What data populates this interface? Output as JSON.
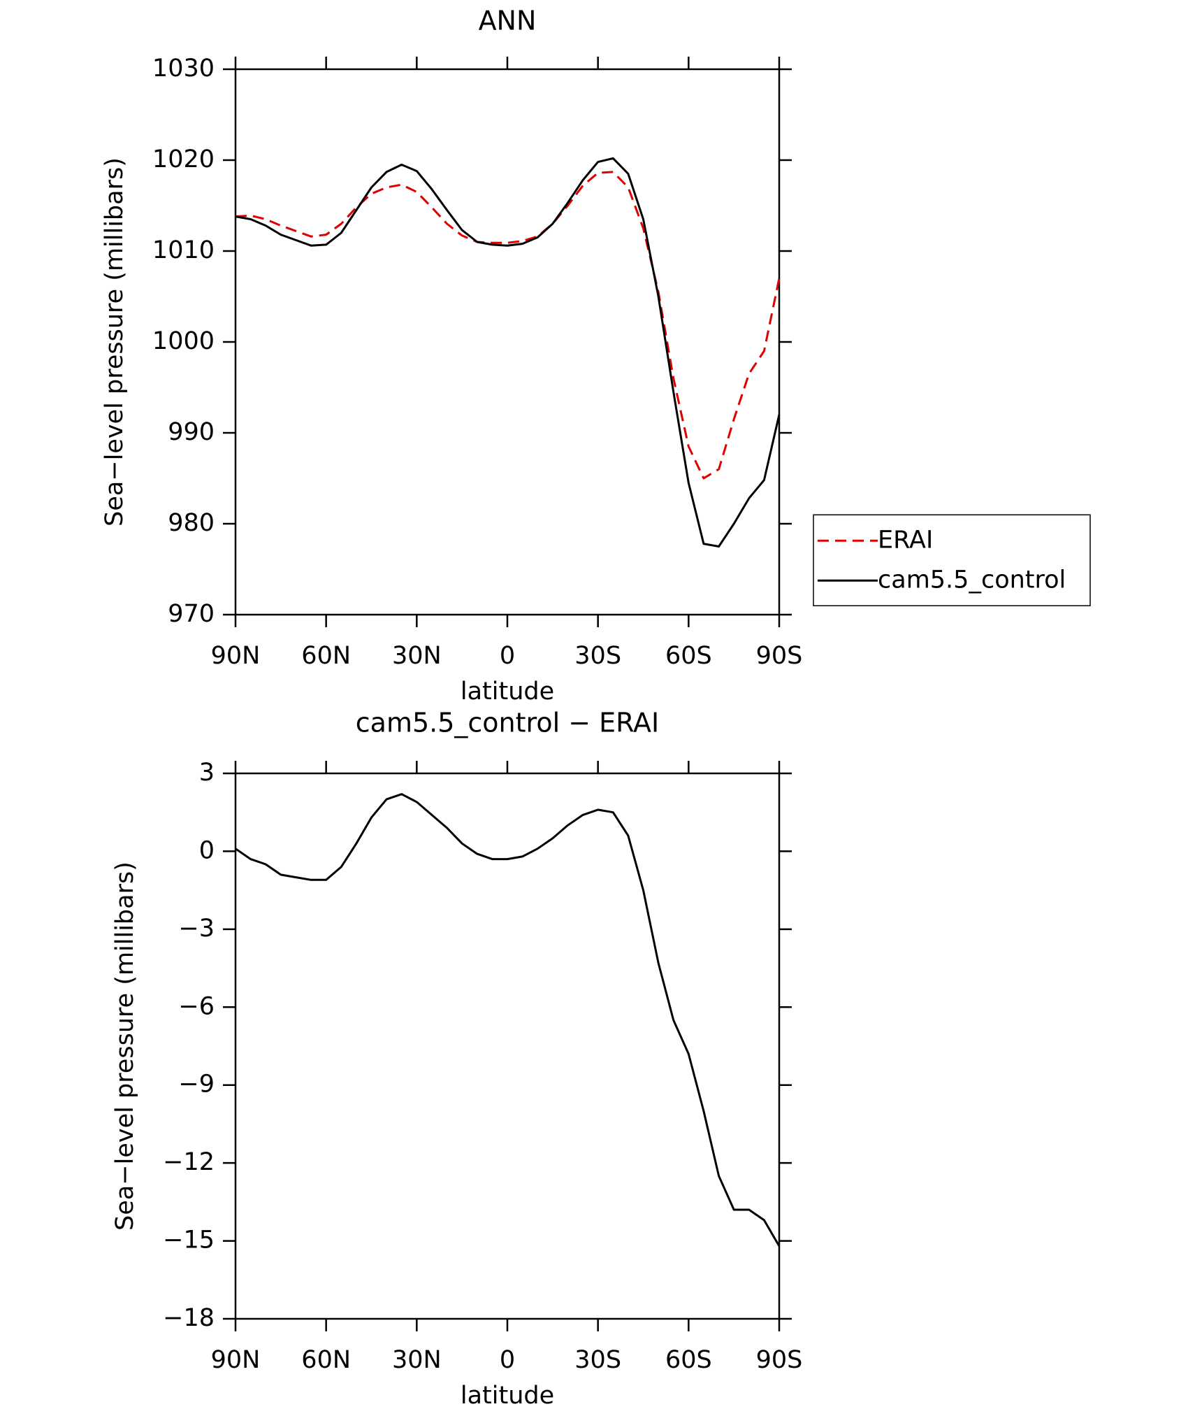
{
  "chart_data": [
    {
      "type": "line",
      "title": "ANN",
      "xlabel": "latitude",
      "ylabel": "Sea−level pressure (millibars)",
      "x": [
        90,
        85,
        80,
        75,
        70,
        65,
        60,
        55,
        50,
        45,
        40,
        35,
        30,
        25,
        20,
        15,
        10,
        5,
        0,
        -5,
        -10,
        -15,
        -20,
        -25,
        -30,
        -35,
        -40,
        -45,
        -50,
        -55,
        -60,
        -65,
        -70,
        -75,
        -80,
        -85,
        -90
      ],
      "xlim": [
        90,
        -90
      ],
      "xticks": [
        {
          "value": 90,
          "label": "90N"
        },
        {
          "value": 60,
          "label": "60N"
        },
        {
          "value": 30,
          "label": "30N"
        },
        0,
        {
          "value": -30,
          "label": "30S"
        },
        {
          "value": -60,
          "label": "60S"
        },
        {
          "value": -90,
          "label": "90S"
        }
      ],
      "ylim": [
        970,
        1030
      ],
      "yticks": [
        970,
        980,
        990,
        1000,
        1010,
        1020,
        1030
      ],
      "legend": "right",
      "series": [
        {
          "name": "ERAI",
          "color": "#e00000",
          "line_style": "dashed",
          "values": [
            1013.8,
            1013.9,
            1013.5,
            1012.8,
            1012.2,
            1011.6,
            1011.8,
            1013.0,
            1014.8,
            1016.3,
            1017.0,
            1017.3,
            1016.5,
            1014.8,
            1013.0,
            1011.7,
            1011.0,
            1010.9,
            1010.9,
            1011.1,
            1011.6,
            1013.0,
            1015.0,
            1017.2,
            1018.6,
            1018.7,
            1017.0,
            1012.5,
            1005.5,
            996.0,
            988.5,
            985.0,
            986.0,
            991.5,
            996.5,
            999.0,
            1007.0
          ]
        },
        {
          "name": "cam5.5_control",
          "color": "#000000",
          "line_style": "solid",
          "values": [
            1013.8,
            1013.5,
            1012.8,
            1011.8,
            1011.2,
            1010.6,
            1010.7,
            1012.0,
            1014.5,
            1017.0,
            1018.7,
            1019.5,
            1018.8,
            1016.8,
            1014.5,
            1012.3,
            1011.0,
            1010.7,
            1010.6,
            1010.8,
            1011.5,
            1013.0,
            1015.3,
            1017.8,
            1019.8,
            1020.2,
            1018.5,
            1013.5,
            1005.0,
            994.5,
            984.5,
            977.8,
            977.5,
            980.0,
            982.8,
            984.8,
            992.0
          ]
        }
      ]
    },
    {
      "type": "line",
      "title": "cam5.5_control − ERAI",
      "xlabel": "latitude",
      "ylabel": "Sea−level pressure (millibars)",
      "x": [
        90,
        85,
        80,
        75,
        70,
        65,
        60,
        55,
        50,
        45,
        40,
        35,
        30,
        25,
        20,
        15,
        10,
        5,
        0,
        -5,
        -10,
        -15,
        -20,
        -25,
        -30,
        -35,
        -40,
        -45,
        -50,
        -55,
        -60,
        -65,
        -70,
        -75,
        -80,
        -85,
        -90
      ],
      "xlim": [
        90,
        -90
      ],
      "xticks": [
        {
          "value": 90,
          "label": "90N"
        },
        {
          "value": 60,
          "label": "60N"
        },
        {
          "value": 30,
          "label": "30N"
        },
        0,
        {
          "value": -30,
          "label": "30S"
        },
        {
          "value": -60,
          "label": "60S"
        },
        {
          "value": -90,
          "label": "90S"
        }
      ],
      "ylim": [
        -18,
        3
      ],
      "yticks": [
        {
          "value": -18,
          "label": "−18"
        },
        {
          "value": -15,
          "label": "−15"
        },
        {
          "value": -12,
          "label": "−12"
        },
        {
          "value": -9,
          "label": "−9"
        },
        {
          "value": -6,
          "label": "−6"
        },
        {
          "value": -3,
          "label": "−3"
        },
        0,
        3
      ],
      "series": [
        {
          "color": "#000000",
          "line_style": "solid",
          "values": [
            0.1,
            -0.3,
            -0.5,
            -0.9,
            -1.0,
            -1.1,
            -1.1,
            -0.6,
            0.3,
            1.3,
            2.0,
            2.2,
            1.9,
            1.4,
            0.9,
            0.3,
            -0.1,
            -0.3,
            -0.3,
            -0.2,
            0.1,
            0.5,
            1.0,
            1.4,
            1.6,
            1.5,
            0.6,
            -1.5,
            -4.3,
            -6.5,
            -7.8,
            -10.0,
            -12.5,
            -13.8,
            -13.8,
            -14.2,
            -15.2
          ]
        }
      ]
    }
  ]
}
